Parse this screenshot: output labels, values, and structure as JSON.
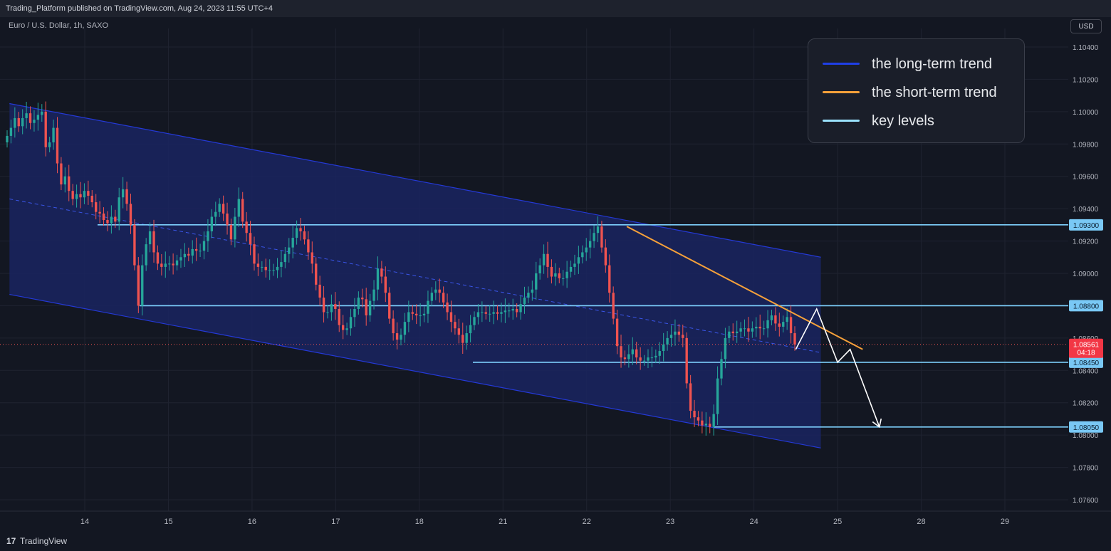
{
  "header": {
    "publish_text": "Trading_Platform published on TradingView.com, Aug 24, 2023 11:55 UTC+4"
  },
  "symbol_info": "Euro / U.S. Dollar, 1h, SAXO",
  "currency_button": "USD",
  "footer": {
    "brand": "TradingView",
    "logo": "17"
  },
  "colors": {
    "background": "#131722",
    "up": "#26a69a",
    "down": "#ef5350",
    "channel_line": "#2439d6",
    "channel_fill": "#1a2560",
    "short_trend": "#f7a13a",
    "key_level": "#7fd3ff",
    "projection": "#ffffff"
  },
  "legend": [
    {
      "label": "the long-term trend",
      "color": "#1f3fe6",
      "icon": "line-swatch"
    },
    {
      "label": "the short-term trend",
      "color": "#f7a13a",
      "icon": "line-swatch"
    },
    {
      "label": "key levels",
      "color": "#9be3ff",
      "icon": "line-swatch"
    }
  ],
  "chart_data": {
    "type": "candlestick",
    "title": "",
    "xlabel": "",
    "ylabel": "",
    "ylim": [
      1.0745,
      1.1055
    ],
    "y_ticks": [
      "1.10400",
      "1.10200",
      "1.10000",
      "1.09800",
      "1.09600",
      "1.09400",
      "1.09200",
      "1.09000",
      "1.08800",
      "1.08600",
      "1.08400",
      "1.08200",
      "1.08000",
      "1.07800",
      "1.07600"
    ],
    "x_ticks": [
      {
        "label": "14",
        "day": 14
      },
      {
        "label": "15",
        "day": 15
      },
      {
        "label": "16",
        "day": 16
      },
      {
        "label": "17",
        "day": 17
      },
      {
        "label": "18",
        "day": 18
      },
      {
        "label": "21",
        "day": 21
      },
      {
        "label": "22",
        "day": 22
      },
      {
        "label": "23",
        "day": 23
      },
      {
        "label": "24",
        "day": 24
      },
      {
        "label": "25",
        "day": 25
      },
      {
        "label": "28",
        "day": 28
      },
      {
        "label": "29",
        "day": 29
      }
    ],
    "key_levels": [
      {
        "price": 1.093,
        "label": "1.09300"
      },
      {
        "price": 1.088,
        "label": "1.08800"
      },
      {
        "price": 1.0845,
        "label": "1.08450"
      },
      {
        "price": 1.0805,
        "label": "1.08050"
      }
    ],
    "current_price": {
      "price": 1.08561,
      "label": "1.08561",
      "countdown": "04:18"
    },
    "series": [
      {
        "name": "EURUSD",
        "closes": [
          1.0985,
          1.099,
          1.0996,
          1.0991,
          1.0996,
          1.0999,
          1.0993,
          1.0995,
          1.0998,
          1.1,
          1.0978,
          1.0981,
          1.099,
          1.0968,
          1.0955,
          1.096,
          1.0951,
          1.0946,
          1.0949,
          1.0947,
          1.0951,
          1.0948,
          1.0944,
          1.0938,
          1.0937,
          1.0933,
          1.0931,
          1.0935,
          1.0932,
          1.0947,
          1.0952,
          1.0943,
          1.093,
          1.0905,
          1.088,
          1.0905,
          1.0918,
          1.0926,
          1.0913,
          1.0906,
          1.0904,
          1.0906,
          1.0906,
          1.0905,
          1.0908,
          1.091,
          1.0912,
          1.0911,
          1.0915,
          1.0914,
          1.0914,
          1.092,
          1.0926,
          1.0935,
          1.0938,
          1.0943,
          1.0937,
          1.093,
          1.0921,
          1.0935,
          1.0946,
          1.0932,
          1.0925,
          1.0918,
          1.0906,
          1.0904,
          1.0904,
          1.0902,
          1.0902,
          1.0902,
          1.0904,
          1.0907,
          1.0912,
          1.0916,
          1.0922,
          1.0928,
          1.0926,
          1.0921,
          1.0913,
          1.0906,
          1.0893,
          1.0885,
          1.0876,
          1.0876,
          1.0881,
          1.0878,
          1.0868,
          1.0865,
          1.0866,
          1.0873,
          1.0878,
          1.0885,
          1.0884,
          1.0874,
          1.0883,
          1.089,
          1.0903,
          1.0898,
          1.0888,
          1.0872,
          1.0863,
          1.0859,
          1.0862,
          1.087,
          1.0876,
          1.0875,
          1.0874,
          1.0874,
          1.0875,
          1.0883,
          1.0888,
          1.089,
          1.0888,
          1.0882,
          1.0876,
          1.087,
          1.0866,
          1.0862,
          1.0857,
          1.0863,
          1.0868,
          1.0873,
          1.0876,
          1.0876,
          1.0875,
          1.0875,
          1.0876,
          1.0875,
          1.0876,
          1.0877,
          1.0877,
          1.0878,
          1.0876,
          1.0881,
          1.0885,
          1.0888,
          1.089,
          1.09,
          1.0905,
          1.0912,
          1.0904,
          1.0898,
          1.09,
          1.0897,
          1.0897,
          1.0901,
          1.0904,
          1.0906,
          1.091,
          1.0913,
          1.0916,
          1.092,
          1.0925,
          1.0929,
          1.0916,
          1.0905,
          1.0888,
          1.0872,
          1.0855,
          1.0848,
          1.0847,
          1.085,
          1.0853,
          1.0848,
          1.0846,
          1.0846,
          1.0848,
          1.0848,
          1.0849,
          1.0852,
          1.0856,
          1.086,
          1.0862,
          1.0864,
          1.0862,
          1.086,
          1.0832,
          1.0815,
          1.0811,
          1.0809,
          1.0806,
          1.0807,
          1.0805,
          1.0813,
          1.0835,
          1.0847,
          1.086,
          1.0864,
          1.0863,
          1.0864,
          1.0866,
          1.0866,
          1.0864,
          1.0866,
          1.0867,
          1.0866,
          1.0866,
          1.0871,
          1.0874,
          1.0869,
          1.0867,
          1.087,
          1.0873,
          1.0863,
          1.0856
        ]
      }
    ],
    "drawings": [
      {
        "name": "long-term-channel",
        "type": "descending-channel",
        "upper": [
          {
            "day": 13.1,
            "price": 1.1005
          },
          {
            "day": 24.8,
            "price": 1.091
          }
        ],
        "lower": [
          {
            "day": 13.1,
            "price": 1.0887
          },
          {
            "day": 24.8,
            "price": 1.0792
          }
        ]
      },
      {
        "name": "short-term-trendline",
        "type": "trendline",
        "points": [
          {
            "day": 22.48,
            "price": 1.0929
          },
          {
            "day": 25.3,
            "price": 1.0853
          }
        ]
      },
      {
        "name": "projection-path",
        "type": "path",
        "points": [
          {
            "day": 24.5,
            "price": 1.0853
          },
          {
            "day": 24.75,
            "price": 1.0878
          },
          {
            "day": 25.0,
            "price": 1.0845
          },
          {
            "day": 25.15,
            "price": 1.0853
          },
          {
            "day": 25.5,
            "price": 1.0805
          }
        ]
      }
    ]
  }
}
